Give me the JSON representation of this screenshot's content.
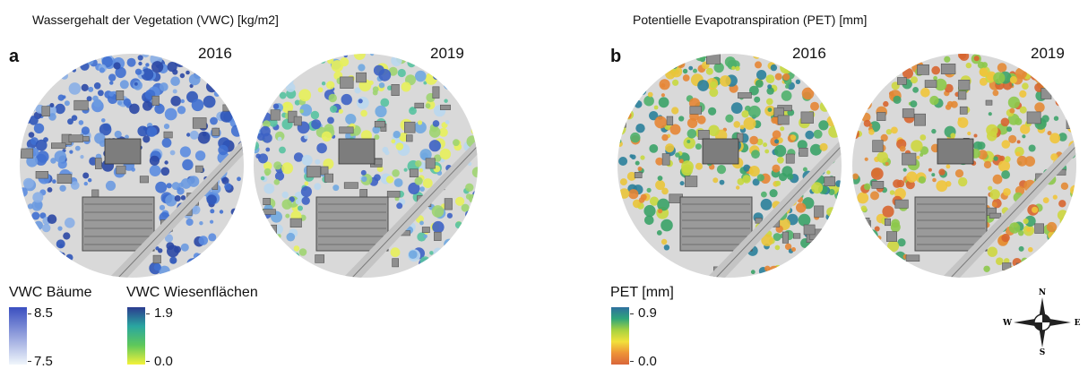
{
  "panel_a": {
    "title": "Wassergehalt der Vegetation (VWC) [kg/m2]",
    "letter": "a",
    "year_left": "2016",
    "year_right": "2019",
    "legend_trees": {
      "title": "VWC Bäume",
      "max": "8.5",
      "min": "7.5",
      "colors": [
        "#3a4fc0",
        "#f0f6fb"
      ]
    },
    "legend_meadow": {
      "title": "VWC Wiesenflächen",
      "max": "1.9",
      "min": "0.0",
      "colors": [
        "#2b3b8f",
        "#2aa6a0",
        "#5fc85a",
        "#f4f23a"
      ]
    }
  },
  "panel_b": {
    "title": "Potentielle Evapotranspiration (PET) [mm]",
    "letter": "b",
    "year_left": "2016",
    "year_right": "2019",
    "legend": {
      "title": "PET [mm]",
      "max": "0.9",
      "min": "0.0",
      "colors": [
        "#2e6f9e",
        "#2fa57a",
        "#a7d240",
        "#f2e13a",
        "#ee9338",
        "#d9663a"
      ]
    }
  },
  "compass": {
    "north": "N",
    "south": "S",
    "east": "E",
    "west": "W"
  }
}
